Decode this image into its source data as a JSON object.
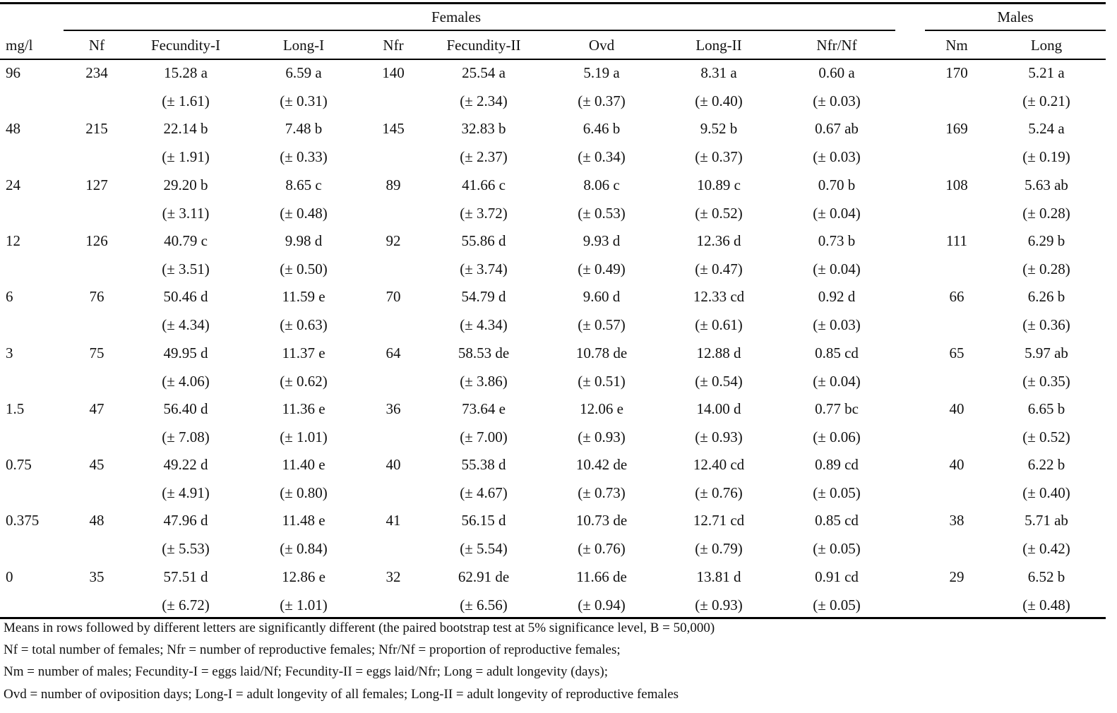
{
  "table": {
    "groups": [
      "Females",
      "Males"
    ],
    "columns": [
      "mg/l",
      "Nf",
      "Fecundity-I",
      "Long-I",
      "Nfr",
      "Fecundity-II",
      "Ovd",
      "Long-II",
      "Nfr/Nf",
      "Nm",
      "Long"
    ],
    "rows": [
      {
        "values": [
          "96",
          "234",
          "15.28 a",
          "6.59 a",
          "140",
          "25.54 a",
          "5.19 a",
          "8.31 a",
          "0.60 a",
          "170",
          "5.21 a"
        ],
        "errors": [
          null,
          null,
          "(± 1.61)",
          "(± 0.31)",
          null,
          "(± 2.34)",
          "(± 0.37)",
          "(± 0.40)",
          "(± 0.03)",
          null,
          "(± 0.21)"
        ]
      },
      {
        "values": [
          "48",
          "215",
          "22.14 b",
          "7.48 b",
          "145",
          "32.83 b",
          "6.46 b",
          "9.52 b",
          "0.67 ab",
          "169",
          "5.24 a"
        ],
        "errors": [
          null,
          null,
          "(± 1.91)",
          "(± 0.33)",
          null,
          "(± 2.37)",
          "(± 0.34)",
          "(± 0.37)",
          "(± 0.03)",
          null,
          "(± 0.19)"
        ]
      },
      {
        "values": [
          "24",
          "127",
          "29.20 b",
          "8.65 c",
          "89",
          "41.66 c",
          "8.06 c",
          "10.89 c",
          "0.70 b",
          "108",
          "5.63 ab"
        ],
        "errors": [
          null,
          null,
          "(± 3.11)",
          "(± 0.48)",
          null,
          "(± 3.72)",
          "(± 0.53)",
          "(± 0.52)",
          "(± 0.04)",
          null,
          "(± 0.28)"
        ]
      },
      {
        "values": [
          "12",
          "126",
          "40.79 c",
          "9.98 d",
          "92",
          "55.86 d",
          "9.93 d",
          "12.36 d",
          "0.73 b",
          "111",
          "6.29 b"
        ],
        "errors": [
          null,
          null,
          "(± 3.51)",
          "(± 0.50)",
          null,
          "(± 3.74)",
          "(± 0.49)",
          "(± 0.47)",
          "(± 0.04)",
          null,
          "(± 0.28)"
        ]
      },
      {
        "values": [
          "6",
          "76",
          "50.46 d",
          "11.59 e",
          "70",
          "54.79 d",
          "9.60 d",
          "12.33 cd",
          "0.92 d",
          "66",
          "6.26 b"
        ],
        "errors": [
          null,
          null,
          "(± 4.34)",
          "(± 0.63)",
          null,
          "(± 4.34)",
          "(± 0.57)",
          "(± 0.61)",
          "(± 0.03)",
          null,
          "(± 0.36)"
        ]
      },
      {
        "values": [
          "3",
          "75",
          "49.95 d",
          "11.37 e",
          "64",
          "58.53 de",
          "10.78 de",
          "12.88 d",
          "0.85 cd",
          "65",
          "5.97 ab"
        ],
        "errors": [
          null,
          null,
          "(± 4.06)",
          "(± 0.62)",
          null,
          "(± 3.86)",
          "(± 0.51)",
          "(± 0.54)",
          "(± 0.04)",
          null,
          "(± 0.35)"
        ]
      },
      {
        "values": [
          "1.5",
          "47",
          "56.40 d",
          "11.36 e",
          "36",
          "73.64 e",
          "12.06 e",
          "14.00 d",
          "0.77 bc",
          "40",
          "6.65 b"
        ],
        "errors": [
          null,
          null,
          "(± 7.08)",
          "(± 1.01)",
          null,
          "(± 7.00)",
          "(± 0.93)",
          "(± 0.93)",
          "(± 0.06)",
          null,
          "(± 0.52)"
        ]
      },
      {
        "values": [
          "0.75",
          "45",
          "49.22 d",
          "11.40 e",
          "40",
          "55.38 d",
          "10.42 de",
          "12.40 cd",
          "0.89 cd",
          "40",
          "6.22 b"
        ],
        "errors": [
          null,
          null,
          "(± 4.91)",
          "(± 0.80)",
          null,
          "(± 4.67)",
          "(± 0.73)",
          "(± 0.76)",
          "(± 0.05)",
          null,
          "(± 0.40)"
        ]
      },
      {
        "values": [
          "0.375",
          "48",
          "47.96 d",
          "11.48 e",
          "41",
          "56.15 d",
          "10.73 de",
          "12.71 cd",
          "0.85 cd",
          "38",
          "5.71 ab"
        ],
        "errors": [
          null,
          null,
          "(± 5.53)",
          "(± 0.84)",
          null,
          "(± 5.54)",
          "(± 0.76)",
          "(± 0.79)",
          "(± 0.05)",
          null,
          "(± 0.42)"
        ]
      },
      {
        "values": [
          "0",
          "35",
          "57.51 d",
          "12.86 e",
          "32",
          "62.91 de",
          "11.66 de",
          "13.81 d",
          "0.91 cd",
          "29",
          "6.52 b"
        ],
        "errors": [
          null,
          null,
          "(± 6.72)",
          "(± 1.01)",
          null,
          "(± 6.56)",
          "(± 0.94)",
          "(± 0.93)",
          "(± 0.05)",
          null,
          "(± 0.48)"
        ]
      }
    ],
    "footnotes": [
      "Means in rows followed by different letters are significantly different (the paired bootstrap test at 5% significance level, B = 50,000)",
      "Nf = total number of females; Nfr = number of reproductive females; Nfr/Nf = proportion of reproductive females;",
      "Nm = number of males; Fecundity-I = eggs laid/Nf;  Fecundity-II = eggs laid/Nfr; Long = adult longevity (days);",
      "Ovd = number of oviposition days; Long-I = adult longevity of all females; Long-II = adult longevity of reproductive females"
    ]
  }
}
